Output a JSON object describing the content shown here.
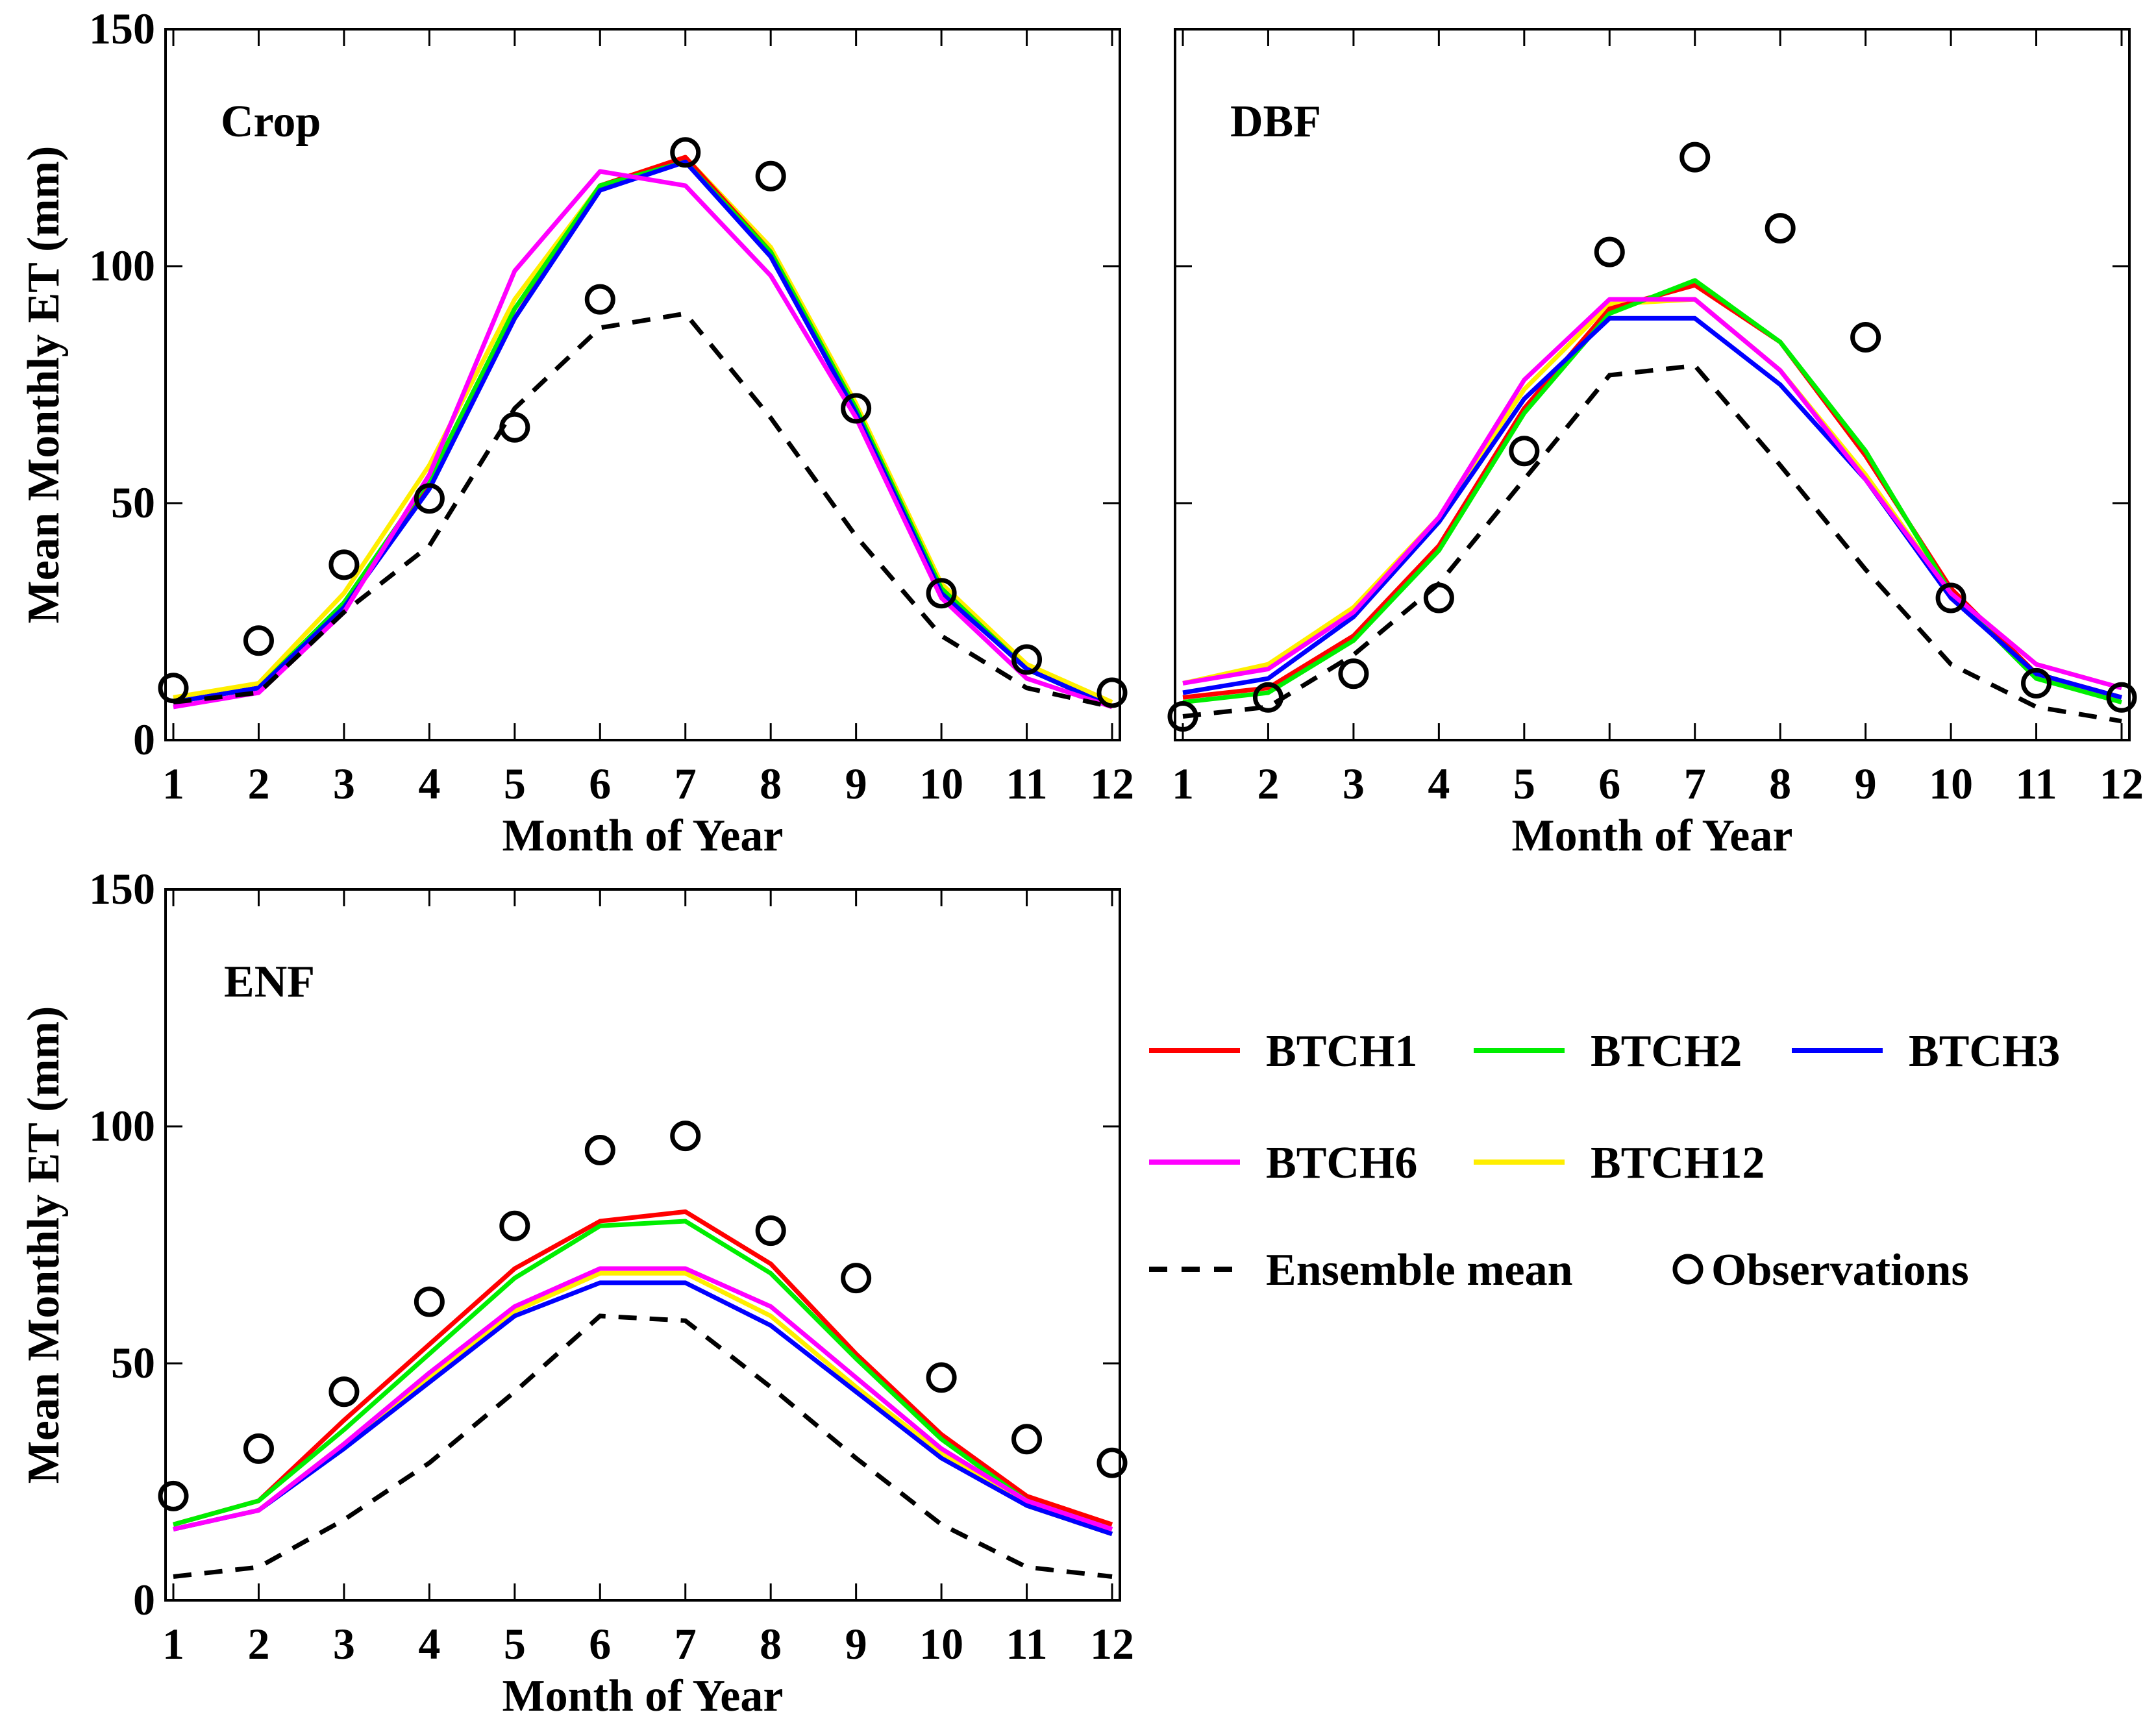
{
  "chart_data": [
    {
      "type": "line",
      "title": "Crop",
      "xlabel": "Month of Year",
      "ylabel": "Mean Monthly ET (mm)",
      "x": [
        1,
        2,
        3,
        4,
        5,
        6,
        7,
        8,
        9,
        10,
        11,
        12
      ],
      "xlim": [
        1,
        12
      ],
      "ylim": [
        0,
        150
      ],
      "yticks": [
        0,
        50,
        100,
        150
      ],
      "series": [
        {
          "name": "BTCH1",
          "values": [
            8,
            11,
            29,
            54,
            89,
            117,
            123,
            103,
            70,
            32,
            15,
            7
          ]
        },
        {
          "name": "BTCH2",
          "values": [
            8,
            11,
            29,
            55,
            91,
            117,
            122,
            103,
            70,
            32,
            15,
            7
          ]
        },
        {
          "name": "BTCH3",
          "values": [
            8,
            11,
            28,
            53,
            89,
            116,
            122,
            102,
            69,
            31,
            15,
            7
          ]
        },
        {
          "name": "BTCH6",
          "values": [
            7,
            10,
            27,
            56,
            99,
            120,
            117,
            98,
            68,
            30,
            13,
            7
          ]
        },
        {
          "name": "BTCH12",
          "values": [
            9,
            12,
            31,
            58,
            93,
            117,
            123,
            104,
            71,
            33,
            16,
            8
          ]
        },
        {
          "name": "Ensemble mean",
          "values": [
            8,
            10,
            27,
            41,
            70,
            87,
            90,
            68,
            43,
            22,
            11,
            7
          ]
        },
        {
          "name": "Observations",
          "values": [
            11,
            21,
            37,
            51,
            66,
            93,
            124,
            119,
            70,
            31,
            17,
            10
          ]
        }
      ]
    },
    {
      "type": "line",
      "title": "DBF",
      "xlabel": "Month of Year",
      "ylabel": "",
      "x": [
        1,
        2,
        3,
        4,
        5,
        6,
        7,
        8,
        9,
        10,
        11,
        12
      ],
      "xlim": [
        1,
        12
      ],
      "ylim": [
        0,
        150
      ],
      "yticks": [
        0,
        50,
        100,
        150
      ],
      "series": [
        {
          "name": "BTCH1",
          "values": [
            9,
            11,
            22,
            41,
            70,
            91,
            96,
            84,
            60,
            32,
            14,
            9
          ]
        },
        {
          "name": "BTCH2",
          "values": [
            8,
            10,
            21,
            40,
            69,
            90,
            97,
            84,
            61,
            31,
            13,
            8
          ]
        },
        {
          "name": "BTCH3",
          "values": [
            10,
            13,
            26,
            46,
            72,
            89,
            89,
            75,
            55,
            30,
            14,
            9
          ]
        },
        {
          "name": "BTCH6",
          "values": [
            12,
            15,
            27,
            47,
            76,
            93,
            93,
            78,
            55,
            31,
            16,
            11
          ]
        },
        {
          "name": "BTCH12",
          "values": [
            12,
            16,
            28,
            47,
            74,
            92,
            93,
            78,
            56,
            31,
            16,
            11
          ]
        },
        {
          "name": "Ensemble mean",
          "values": [
            5,
            7,
            18,
            33,
            55,
            77,
            79,
            58,
            36,
            16,
            7,
            4
          ]
        },
        {
          "name": "Observations",
          "values": [
            5,
            9,
            14,
            30,
            61,
            103,
            123,
            108,
            85,
            30,
            12,
            9
          ]
        }
      ]
    },
    {
      "type": "line",
      "title": "ENF",
      "xlabel": "Month of Year",
      "ylabel": "Mean Monthly ET (mm)",
      "x": [
        1,
        2,
        3,
        4,
        5,
        6,
        7,
        8,
        9,
        10,
        11,
        12
      ],
      "xlim": [
        1,
        12
      ],
      "ylim": [
        0,
        150
      ],
      "yticks": [
        0,
        50,
        100,
        150
      ],
      "series": [
        {
          "name": "BTCH1",
          "values": [
            16,
            21,
            38,
            54,
            70,
            80,
            82,
            71,
            52,
            35,
            22,
            16
          ]
        },
        {
          "name": "BTCH2",
          "values": [
            16,
            21,
            36,
            52,
            68,
            79,
            80,
            69,
            51,
            34,
            21,
            15
          ]
        },
        {
          "name": "BTCH3",
          "values": [
            15,
            19,
            32,
            46,
            60,
            67,
            67,
            58,
            44,
            30,
            20,
            14
          ]
        },
        {
          "name": "BTCH6",
          "values": [
            15,
            19,
            33,
            48,
            62,
            70,
            70,
            62,
            47,
            32,
            21,
            15
          ]
        },
        {
          "name": "BTCH12",
          "values": [
            15,
            19,
            33,
            47,
            61,
            69,
            69,
            60,
            45,
            31,
            20,
            14
          ]
        },
        {
          "name": "Ensemble mean",
          "values": [
            5,
            7,
            17,
            29,
            44,
            60,
            59,
            45,
            30,
            16,
            7,
            5
          ]
        },
        {
          "name": "Observations",
          "values": [
            22,
            32,
            44,
            63,
            79,
            95,
            98,
            78,
            68,
            47,
            34,
            29
          ]
        }
      ]
    }
  ],
  "legend": {
    "items": [
      {
        "label": "BTCH1",
        "color": "#ff0000",
        "style": "solid"
      },
      {
        "label": "BTCH2",
        "color": "#00ee00",
        "style": "solid"
      },
      {
        "label": "BTCH3",
        "color": "#0000ff",
        "style": "solid"
      },
      {
        "label": "BTCH6",
        "color": "#ff00ff",
        "style": "solid"
      },
      {
        "label": "BTCH12",
        "color": "#ffee00",
        "style": "solid"
      },
      {
        "label": "Ensemble mean",
        "color": "#000000",
        "style": "dashed"
      },
      {
        "label": "Observations",
        "color": "#000000",
        "style": "circle"
      }
    ]
  },
  "colors": {
    "BTCH1": "#ff0000",
    "BTCH2": "#00ee00",
    "BTCH3": "#0000ff",
    "BTCH6": "#ff00ff",
    "BTCH12": "#ffee00",
    "Ensemble mean": "#000000",
    "Observations": "#000000"
  }
}
